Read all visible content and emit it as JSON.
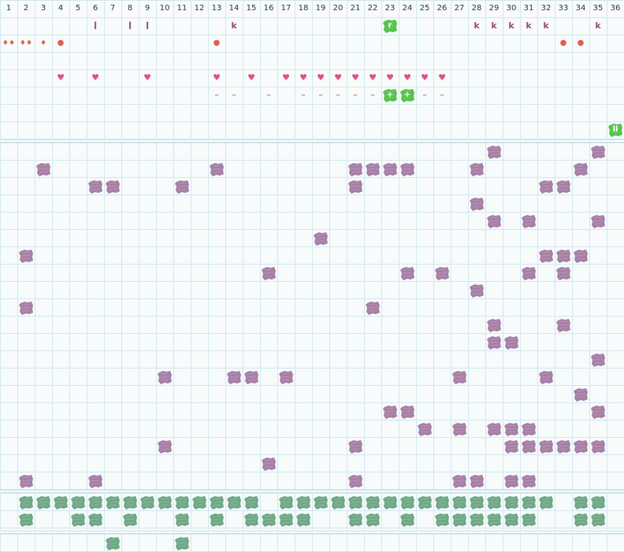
{
  "colors": {
    "purple_piece": "#a77fa6",
    "green_piece": "#6fa886",
    "bright_green_piece": "#55c24a",
    "grid_line": "#d3e7ec",
    "heart": "#e0517a",
    "dot": "#e0604e",
    "dash": "#ef8a4a",
    "letter": "#9a4d6a"
  },
  "column_numbers": [
    "1",
    "2",
    "3",
    "4",
    "5",
    "6",
    "7",
    "8",
    "9",
    "10",
    "11",
    "12",
    "13",
    "14",
    "15",
    "16",
    "17",
    "18",
    "19",
    "20",
    "21",
    "22",
    "23",
    "24",
    "25",
    "26",
    "27",
    "28",
    "29",
    "30",
    "31",
    "32",
    "33",
    "34",
    "35",
    "36"
  ],
  "header_marks": [
    {
      "col": 6,
      "row": 1,
      "type": "letter",
      "text": "l"
    },
    {
      "col": 8,
      "row": 1,
      "type": "letter",
      "text": "l"
    },
    {
      "col": 9,
      "row": 1,
      "type": "letter",
      "text": "l"
    },
    {
      "col": 14,
      "row": 1,
      "type": "letter",
      "text": "k"
    },
    {
      "col": 23,
      "row": 1,
      "type": "bright-piece",
      "text": "r"
    },
    {
      "col": 28,
      "row": 1,
      "type": "letter",
      "text": "k"
    },
    {
      "col": 29,
      "row": 1,
      "type": "letter",
      "text": "k"
    },
    {
      "col": 30,
      "row": 1,
      "type": "letter",
      "text": "k"
    },
    {
      "col": 31,
      "row": 1,
      "type": "letter",
      "text": "k"
    },
    {
      "col": 32,
      "row": 1,
      "type": "letter",
      "text": "k"
    },
    {
      "col": 35,
      "row": 1,
      "type": "letter",
      "text": "k"
    },
    {
      "col": 1,
      "row": 2,
      "type": "drop",
      "text": "♦♦"
    },
    {
      "col": 2,
      "row": 2,
      "type": "drop",
      "text": "♦♦"
    },
    {
      "col": 3,
      "row": 2,
      "type": "drop",
      "text": "♦"
    },
    {
      "col": 4,
      "row": 2,
      "type": "dot",
      "text": "●"
    },
    {
      "col": 13,
      "row": 2,
      "type": "dot",
      "text": "●"
    },
    {
      "col": 33,
      "row": 2,
      "type": "dot",
      "text": "●"
    },
    {
      "col": 34,
      "row": 2,
      "type": "dot",
      "text": "●"
    },
    {
      "col": 4,
      "row": 4,
      "type": "heart",
      "text": "♥"
    },
    {
      "col": 6,
      "row": 4,
      "type": "heart",
      "text": "♥"
    },
    {
      "col": 9,
      "row": 4,
      "type": "heart",
      "text": "♥"
    },
    {
      "col": 13,
      "row": 4,
      "type": "heart",
      "text": "♥"
    },
    {
      "col": 15,
      "row": 4,
      "type": "heart",
      "text": "♥"
    },
    {
      "col": 17,
      "row": 4,
      "type": "heart",
      "text": "♥"
    },
    {
      "col": 18,
      "row": 4,
      "type": "heart",
      "text": "♥"
    },
    {
      "col": 19,
      "row": 4,
      "type": "heart",
      "text": "♥"
    },
    {
      "col": 20,
      "row": 4,
      "type": "heart",
      "text": "♥"
    },
    {
      "col": 21,
      "row": 4,
      "type": "heart",
      "text": "♥"
    },
    {
      "col": 22,
      "row": 4,
      "type": "heart",
      "text": "♥"
    },
    {
      "col": 23,
      "row": 4,
      "type": "heart",
      "text": "♥"
    },
    {
      "col": 24,
      "row": 4,
      "type": "heart",
      "text": "♥"
    },
    {
      "col": 25,
      "row": 4,
      "type": "heart",
      "text": "♥"
    },
    {
      "col": 26,
      "row": 4,
      "type": "heart",
      "text": "♥"
    },
    {
      "col": 13,
      "row": 5,
      "type": "dash",
      "text": "–"
    },
    {
      "col": 14,
      "row": 5,
      "type": "dash",
      "text": "–"
    },
    {
      "col": 16,
      "row": 5,
      "type": "dash",
      "text": "–"
    },
    {
      "col": 18,
      "row": 5,
      "type": "dash",
      "text": "–"
    },
    {
      "col": 19,
      "row": 5,
      "type": "dash",
      "text": "–"
    },
    {
      "col": 20,
      "row": 5,
      "type": "dash",
      "text": "–"
    },
    {
      "col": 21,
      "row": 5,
      "type": "dash",
      "text": "–"
    },
    {
      "col": 22,
      "row": 5,
      "type": "dash",
      "text": "–"
    },
    {
      "col": 23,
      "row": 5,
      "type": "bright-piece",
      "text": "+"
    },
    {
      "col": 24,
      "row": 5,
      "type": "bright-piece",
      "text": "+"
    },
    {
      "col": 25,
      "row": 5,
      "type": "dash",
      "text": "–"
    },
    {
      "col": 26,
      "row": 5,
      "type": "dash",
      "text": "–"
    },
    {
      "col": 36,
      "row": 7,
      "type": "bright-piece",
      "text": "ll"
    }
  ],
  "main_pieces": [
    [
      29,
      0
    ],
    [
      35,
      0
    ],
    [
      3,
      1
    ],
    [
      13,
      1
    ],
    [
      21,
      1
    ],
    [
      22,
      1
    ],
    [
      23,
      1
    ],
    [
      24,
      1
    ],
    [
      28,
      1
    ],
    [
      34,
      1
    ],
    [
      6,
      2
    ],
    [
      7,
      2
    ],
    [
      11,
      2
    ],
    [
      21,
      2
    ],
    [
      32,
      2
    ],
    [
      33,
      2
    ],
    [
      28,
      3
    ],
    [
      29,
      4
    ],
    [
      31,
      4
    ],
    [
      35,
      4
    ],
    [
      19,
      5
    ],
    [
      2,
      6
    ],
    [
      32,
      6
    ],
    [
      33,
      6
    ],
    [
      34,
      6
    ],
    [
      16,
      7
    ],
    [
      24,
      7
    ],
    [
      26,
      7
    ],
    [
      31,
      7
    ],
    [
      33,
      7
    ],
    [
      28,
      8
    ],
    [
      2,
      9
    ],
    [
      22,
      9
    ],
    [
      29,
      10
    ],
    [
      33,
      10
    ],
    [
      29,
      11
    ],
    [
      30,
      11
    ],
    [
      35,
      12
    ],
    [
      10,
      13
    ],
    [
      14,
      13
    ],
    [
      15,
      13
    ],
    [
      17,
      13
    ],
    [
      27,
      13
    ],
    [
      32,
      13
    ],
    [
      34,
      14
    ],
    [
      23,
      15
    ],
    [
      24,
      15
    ],
    [
      35,
      15
    ],
    [
      25,
      16
    ],
    [
      27,
      16
    ],
    [
      29,
      16
    ],
    [
      30,
      16
    ],
    [
      31,
      16
    ],
    [
      10,
      17
    ],
    [
      21,
      17
    ],
    [
      30,
      17
    ],
    [
      31,
      17
    ],
    [
      32,
      17
    ],
    [
      33,
      17
    ],
    [
      34,
      17
    ],
    [
      35,
      17
    ],
    [
      16,
      18
    ],
    [
      2,
      19
    ],
    [
      6,
      19
    ],
    [
      21,
      19
    ],
    [
      27,
      19
    ],
    [
      28,
      19
    ],
    [
      30,
      19
    ],
    [
      31,
      19
    ]
  ],
  "bottom_pieces": [
    [
      2,
      0
    ],
    [
      3,
      0
    ],
    [
      4,
      0
    ],
    [
      5,
      0
    ],
    [
      6,
      0
    ],
    [
      7,
      0
    ],
    [
      8,
      0
    ],
    [
      9,
      0
    ],
    [
      10,
      0
    ],
    [
      11,
      0
    ],
    [
      12,
      0
    ],
    [
      13,
      0
    ],
    [
      14,
      0
    ],
    [
      15,
      0
    ],
    [
      17,
      0
    ],
    [
      18,
      0
    ],
    [
      19,
      0
    ],
    [
      20,
      0
    ],
    [
      21,
      0
    ],
    [
      22,
      0
    ],
    [
      23,
      0
    ],
    [
      24,
      0
    ],
    [
      25,
      0
    ],
    [
      26,
      0
    ],
    [
      27,
      0
    ],
    [
      28,
      0
    ],
    [
      29,
      0
    ],
    [
      30,
      0
    ],
    [
      31,
      0
    ],
    [
      32,
      0
    ],
    [
      34,
      0
    ],
    [
      35,
      0
    ],
    [
      2,
      1
    ],
    [
      5,
      1
    ],
    [
      6,
      1
    ],
    [
      8,
      1
    ],
    [
      11,
      1
    ],
    [
      13,
      1
    ],
    [
      15,
      1
    ],
    [
      16,
      1
    ],
    [
      17,
      1
    ],
    [
      18,
      1
    ],
    [
      21,
      1
    ],
    [
      22,
      1
    ],
    [
      24,
      1
    ],
    [
      26,
      1
    ],
    [
      27,
      1
    ],
    [
      28,
      1
    ],
    [
      29,
      1
    ],
    [
      30,
      1
    ],
    [
      31,
      1
    ],
    [
      34,
      1
    ],
    [
      35,
      1
    ]
  ],
  "tray_pieces": [
    [
      7,
      0
    ],
    [
      11,
      0
    ]
  ]
}
